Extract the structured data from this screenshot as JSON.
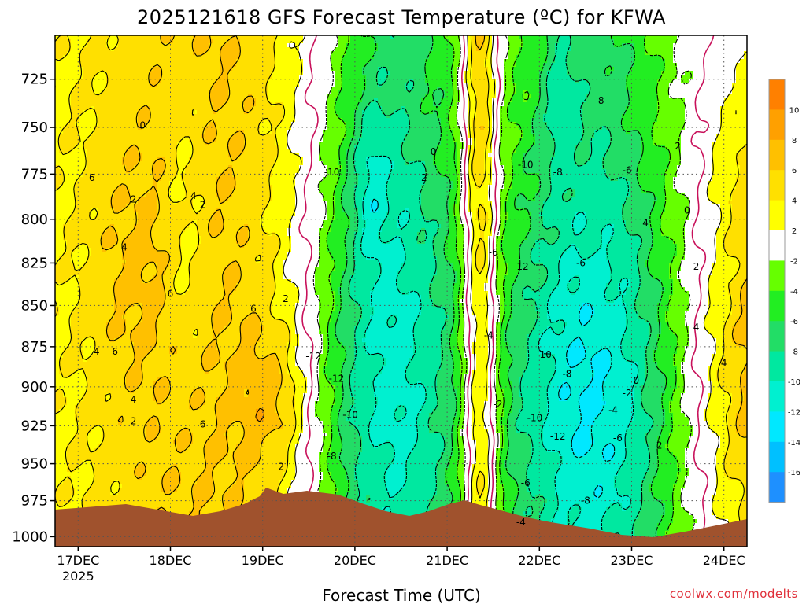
{
  "chart_data": {
    "type": "heatmap",
    "title": "2025121618 GFS Forecast Temperature (ºC) for KFWA",
    "xlabel": "Forecast Time (UTC)",
    "ylabel": "",
    "x_ticks": [
      {
        "label": "17DEC",
        "sub": "2025",
        "day": 17
      },
      {
        "label": "18DEC",
        "sub": "",
        "day": 18
      },
      {
        "label": "19DEC",
        "sub": "",
        "day": 19
      },
      {
        "label": "20DEC",
        "sub": "",
        "day": 20
      },
      {
        "label": "21DEC",
        "sub": "",
        "day": 21
      },
      {
        "label": "22DEC",
        "sub": "",
        "day": 22
      },
      {
        "label": "23DEC",
        "sub": "",
        "day": 23
      },
      {
        "label": "24DEC",
        "sub": "",
        "day": 24
      }
    ],
    "xlim_days": [
      16.75,
      24.25
    ],
    "y_ticks": [
      725,
      750,
      775,
      800,
      825,
      850,
      875,
      900,
      925,
      950,
      975,
      1000
    ],
    "ylim_hpa": [
      703,
      1007
    ],
    "y_log": true,
    "grid": true,
    "colorbar": {
      "labels": [
        "10",
        "8",
        "6",
        "4",
        "2",
        "-2",
        "-4",
        "-6",
        "-8",
        "-10",
        "-12",
        "-14",
        "-16"
      ],
      "colors": [
        "#ff8000",
        "#ffa000",
        "#ffc000",
        "#ffe000",
        "#ffff00",
        "#ffffff",
        "#66ff00",
        "#22ee22",
        "#22dd66",
        "#00e8a0",
        "#00f0d0",
        "#00e8ff",
        "#00c0ff",
        "#1e90ff"
      ]
    },
    "contour_labels": [
      {
        "t": "0",
        "day": 17.7,
        "p": 749
      },
      {
        "t": "6",
        "day": 17.15,
        "p": 777
      },
      {
        "t": "2",
        "day": 17.6,
        "p": 789
      },
      {
        "t": "4",
        "day": 18.25,
        "p": 787
      },
      {
        "t": "2",
        "day": 18.35,
        "p": 792
      },
      {
        "t": "4",
        "day": 17.5,
        "p": 816
      },
      {
        "t": "6",
        "day": 18.0,
        "p": 843
      },
      {
        "t": "6",
        "day": 18.9,
        "p": 852
      },
      {
        "t": "4",
        "day": 17.2,
        "p": 878
      },
      {
        "t": "6",
        "day": 17.4,
        "p": 878
      },
      {
        "t": "4",
        "day": 17.6,
        "p": 908
      },
      {
        "t": "2",
        "day": 17.6,
        "p": 922
      },
      {
        "t": "6",
        "day": 18.35,
        "p": 924
      },
      {
        "t": "2",
        "day": 19.25,
        "p": 846
      },
      {
        "t": "2",
        "day": 19.2,
        "p": 952
      },
      {
        "t": "-10",
        "day": 19.75,
        "p": 774
      },
      {
        "t": "-12",
        "day": 19.55,
        "p": 881
      },
      {
        "t": "-12",
        "day": 19.8,
        "p": 895
      },
      {
        "t": "-10",
        "day": 19.95,
        "p": 918
      },
      {
        "t": "-8",
        "day": 19.75,
        "p": 945
      },
      {
        "t": "0",
        "day": 20.85,
        "p": 763
      },
      {
        "t": "2",
        "day": 20.75,
        "p": 777
      },
      {
        "t": "-10",
        "day": 21.85,
        "p": 770
      },
      {
        "t": "-8",
        "day": 22.2,
        "p": 774
      },
      {
        "t": "-8",
        "day": 22.65,
        "p": 736
      },
      {
        "t": "2",
        "day": 23.5,
        "p": 760
      },
      {
        "t": "-6",
        "day": 22.95,
        "p": 773
      },
      {
        "t": "0",
        "day": 23.6,
        "p": 795
      },
      {
        "t": "4",
        "day": 23.15,
        "p": 802
      },
      {
        "t": "-6",
        "day": 21.5,
        "p": 819
      },
      {
        "t": "-12",
        "day": 21.8,
        "p": 827
      },
      {
        "t": "-6",
        "day": 22.45,
        "p": 825
      },
      {
        "t": "2",
        "day": 23.7,
        "p": 827
      },
      {
        "t": "-4",
        "day": 21.45,
        "p": 868
      },
      {
        "t": "-10",
        "day": 22.05,
        "p": 880
      },
      {
        "t": "-8",
        "day": 22.3,
        "p": 892
      },
      {
        "t": "0",
        "day": 23.05,
        "p": 896
      },
      {
        "t": "-2",
        "day": 22.95,
        "p": 904
      },
      {
        "t": "4",
        "day": 23.7,
        "p": 863
      },
      {
        "t": "4",
        "day": 24.0,
        "p": 885
      },
      {
        "t": "-2",
        "day": 21.55,
        "p": 911
      },
      {
        "t": "-10",
        "day": 21.95,
        "p": 920
      },
      {
        "t": "-12",
        "day": 22.2,
        "p": 932
      },
      {
        "t": "-4",
        "day": 22.8,
        "p": 915
      },
      {
        "t": "-6",
        "day": 22.85,
        "p": 933
      },
      {
        "t": "2",
        "day": 23.3,
        "p": 938
      },
      {
        "t": "-6",
        "day": 21.85,
        "p": 963
      },
      {
        "t": "-8",
        "day": 22.5,
        "p": 975
      },
      {
        "t": "-4",
        "day": 21.8,
        "p": 990
      }
    ]
  },
  "credit": "coolwx.com/modelts",
  "colors": {
    "terrain": "#a0522d",
    "contour_warm": "#000000",
    "contour_freezing": "#c8105a",
    "contour_cold": "#000000"
  }
}
